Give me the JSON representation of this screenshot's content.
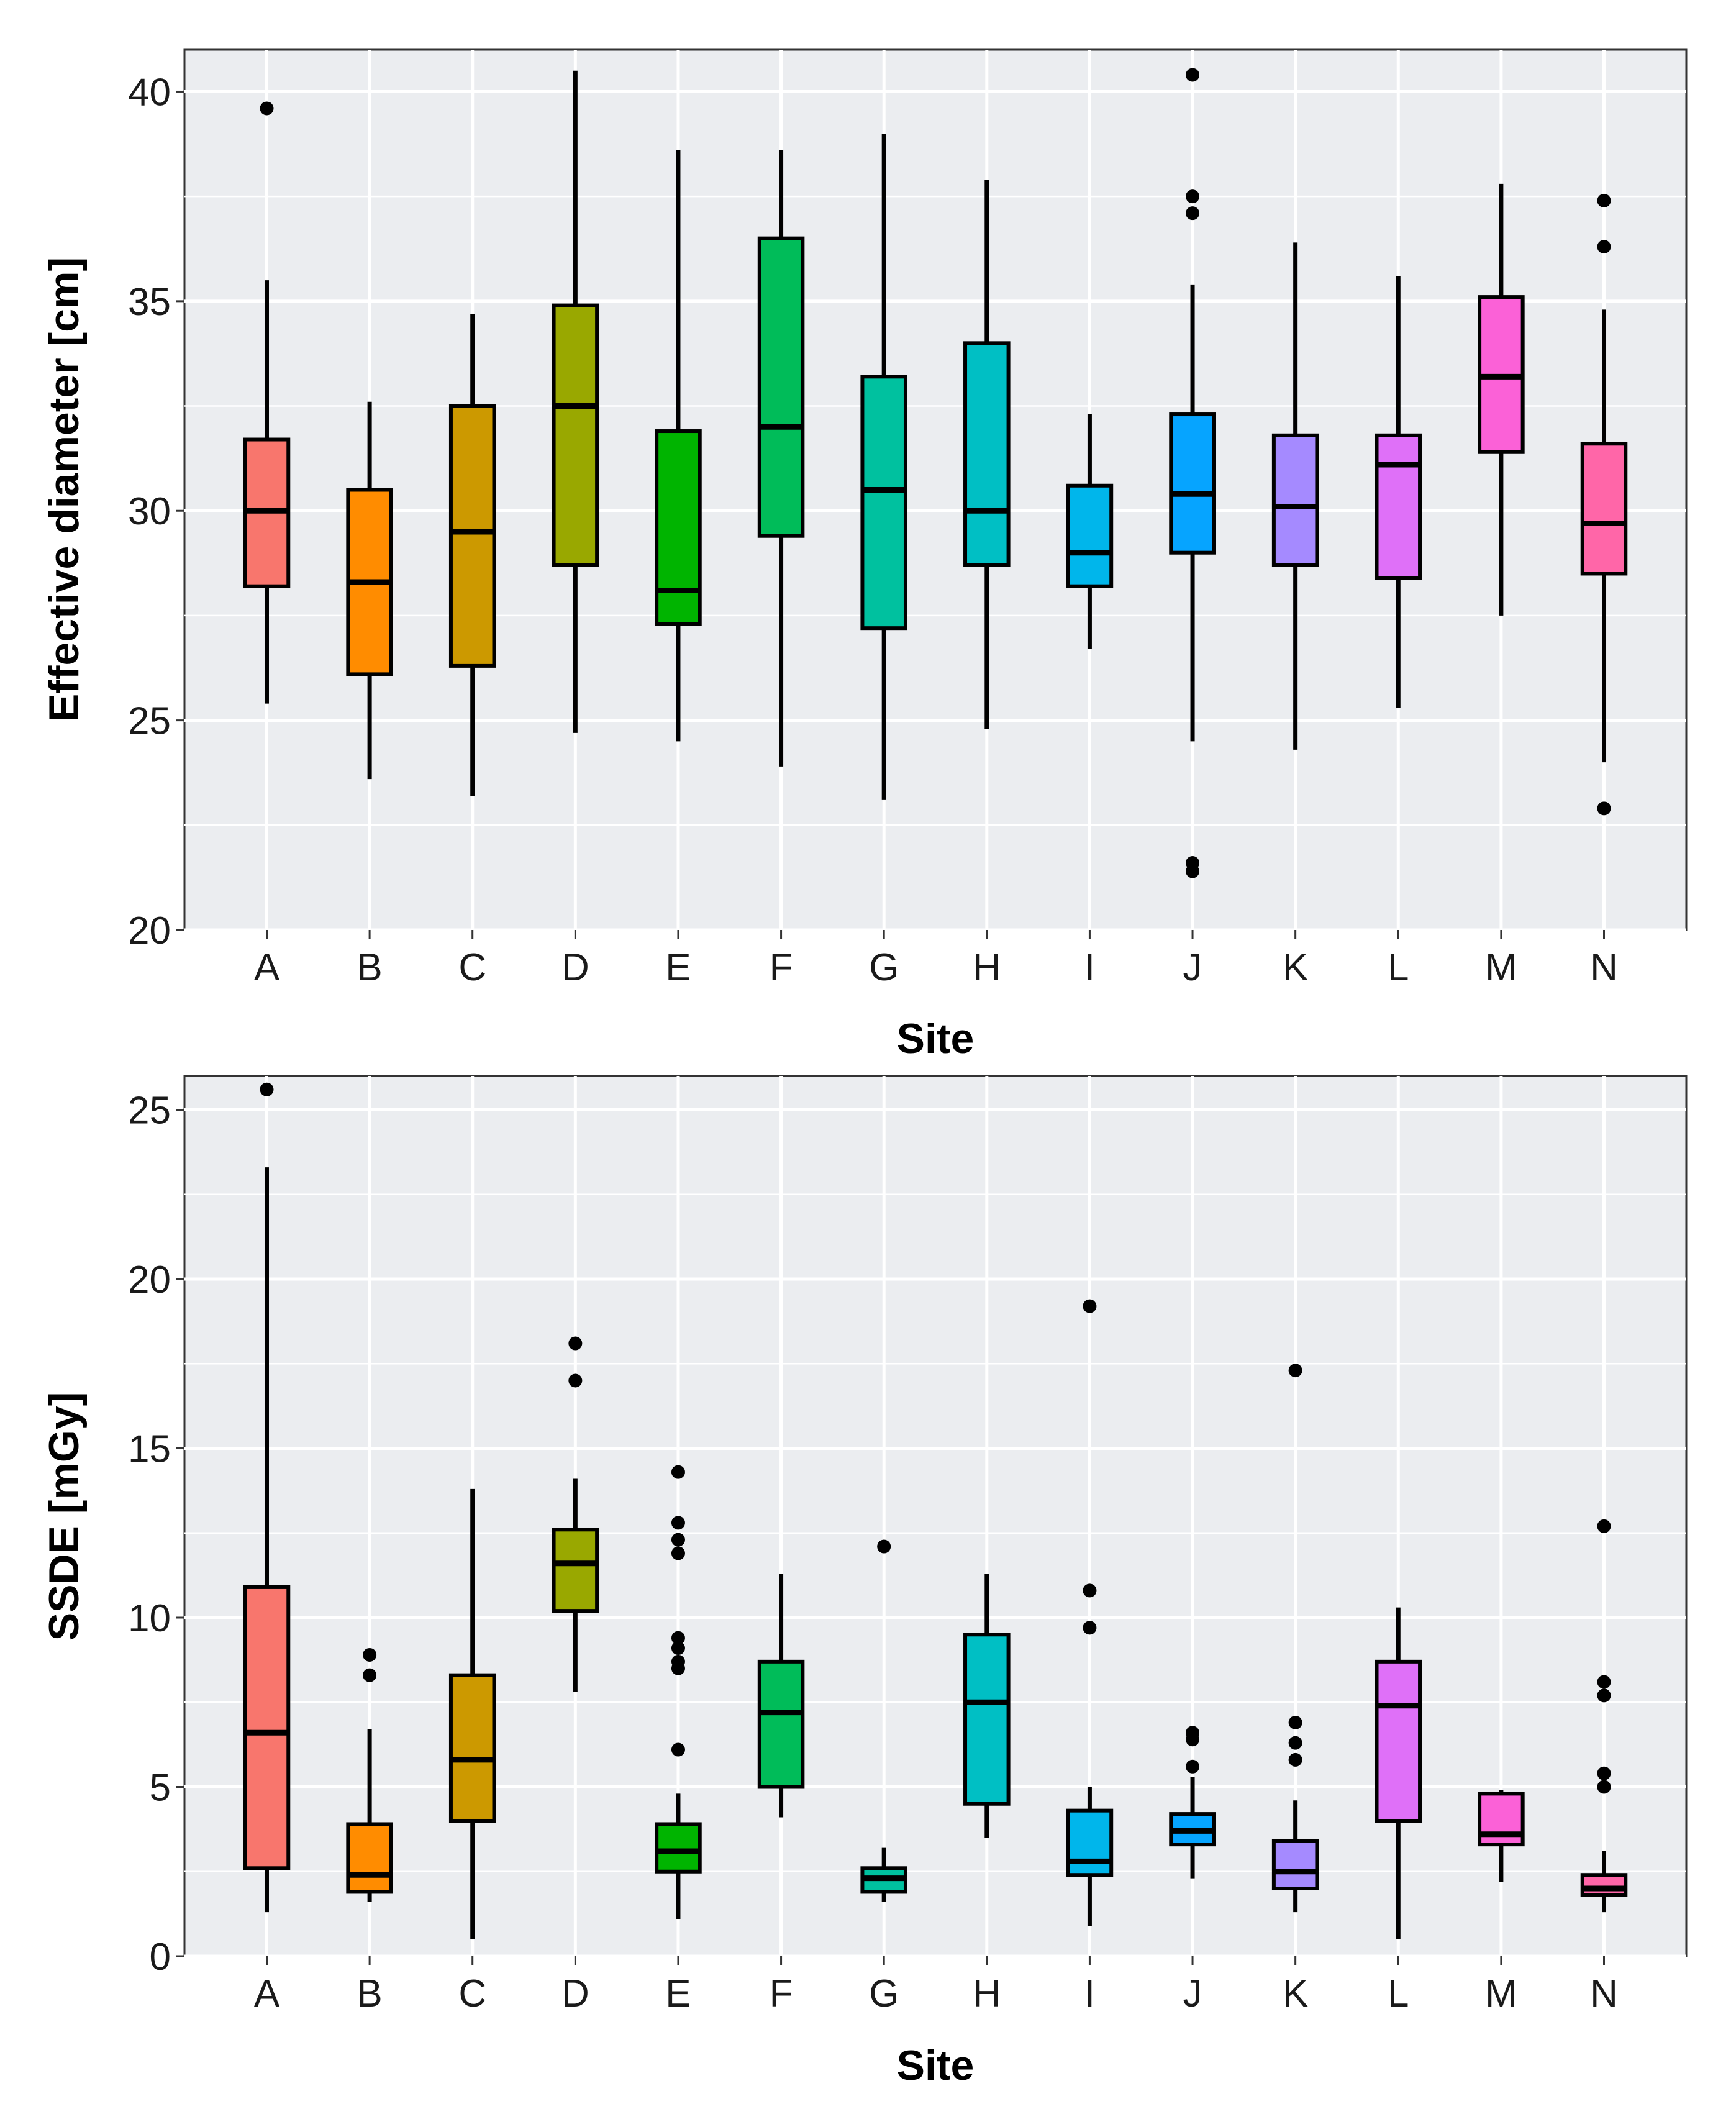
{
  "chart_data": [
    {
      "type": "boxplot",
      "title": "",
      "xlabel": "Site",
      "ylabel": "Effective diameter [cm]",
      "ylim": [
        20,
        41
      ],
      "yticks": [
        20,
        25,
        30,
        35,
        40
      ],
      "categories": [
        "A",
        "B",
        "C",
        "D",
        "E",
        "F",
        "G",
        "H",
        "I",
        "J",
        "K",
        "L",
        "M",
        "N"
      ],
      "colors": [
        "#F8766D",
        "#FF8C00",
        "#CC9900",
        "#99A800",
        "#00B400",
        "#00BC59",
        "#00C19F",
        "#00BFC4",
        "#00B6EB",
        "#06A4FF",
        "#A58AFF",
        "#DF70F8",
        "#FB61D7",
        "#FF66A8"
      ],
      "boxes": [
        {
          "site": "A",
          "low": 25.4,
          "q1": 28.2,
          "median": 30.0,
          "q3": 31.7,
          "high": 35.5,
          "outliers": [
            39.6
          ]
        },
        {
          "site": "B",
          "low": 23.6,
          "q1": 26.1,
          "median": 28.3,
          "q3": 30.5,
          "high": 32.6,
          "outliers": []
        },
        {
          "site": "C",
          "low": 23.2,
          "q1": 26.3,
          "median": 29.5,
          "q3": 32.5,
          "high": 34.7,
          "outliers": []
        },
        {
          "site": "D",
          "low": 24.7,
          "q1": 28.7,
          "median": 32.5,
          "q3": 34.9,
          "high": 40.5,
          "outliers": []
        },
        {
          "site": "E",
          "low": 24.5,
          "q1": 27.3,
          "median": 28.1,
          "q3": 31.9,
          "high": 38.6,
          "outliers": []
        },
        {
          "site": "F",
          "low": 23.9,
          "q1": 29.4,
          "median": 32.0,
          "q3": 36.5,
          "high": 38.6,
          "outliers": []
        },
        {
          "site": "G",
          "low": 23.1,
          "q1": 27.2,
          "median": 30.5,
          "q3": 33.2,
          "high": 39.0,
          "outliers": []
        },
        {
          "site": "H",
          "low": 24.8,
          "q1": 28.7,
          "median": 30.0,
          "q3": 34.0,
          "high": 37.9,
          "outliers": []
        },
        {
          "site": "I",
          "low": 26.7,
          "q1": 28.2,
          "median": 29.0,
          "q3": 30.6,
          "high": 32.3,
          "outliers": []
        },
        {
          "site": "J",
          "low": 24.5,
          "q1": 29.0,
          "median": 30.4,
          "q3": 32.3,
          "high": 35.4,
          "outliers": [
            40.4,
            37.5,
            37.1,
            21.6,
            21.4
          ]
        },
        {
          "site": "K",
          "low": 24.3,
          "q1": 28.7,
          "median": 30.1,
          "q3": 31.8,
          "high": 36.4,
          "outliers": []
        },
        {
          "site": "L",
          "low": 25.3,
          "q1": 28.4,
          "median": 31.1,
          "q3": 31.8,
          "high": 35.6,
          "outliers": []
        },
        {
          "site": "M",
          "low": 27.5,
          "q1": 31.4,
          "median": 33.2,
          "q3": 35.1,
          "high": 37.8,
          "outliers": []
        },
        {
          "site": "N",
          "low": 24.0,
          "q1": 28.5,
          "median": 29.7,
          "q3": 31.6,
          "high": 34.8,
          "outliers": [
            37.4,
            36.3,
            22.9
          ]
        }
      ]
    },
    {
      "type": "boxplot",
      "title": "",
      "xlabel": "Site",
      "ylabel": "SSDE [mGy]",
      "ylim": [
        0,
        26
      ],
      "yticks": [
        0,
        5,
        10,
        15,
        20,
        25
      ],
      "categories": [
        "A",
        "B",
        "C",
        "D",
        "E",
        "F",
        "G",
        "H",
        "I",
        "J",
        "K",
        "L",
        "M",
        "N"
      ],
      "colors": [
        "#F8766D",
        "#FF8C00",
        "#CC9900",
        "#99A800",
        "#00B400",
        "#00BC59",
        "#00C19F",
        "#00BFC4",
        "#00B6EB",
        "#06A4FF",
        "#A58AFF",
        "#DF70F8",
        "#FB61D7",
        "#FF66A8"
      ],
      "boxes": [
        {
          "site": "A",
          "low": 1.3,
          "q1": 2.6,
          "median": 6.6,
          "q3": 10.9,
          "high": 23.3,
          "outliers": [
            25.6
          ]
        },
        {
          "site": "B",
          "low": 1.6,
          "q1": 1.9,
          "median": 2.4,
          "q3": 3.9,
          "high": 6.7,
          "outliers": [
            8.9,
            8.3
          ]
        },
        {
          "site": "C",
          "low": 0.5,
          "q1": 4.0,
          "median": 5.8,
          "q3": 8.3,
          "high": 13.8,
          "outliers": []
        },
        {
          "site": "D",
          "low": 7.8,
          "q1": 10.2,
          "median": 11.6,
          "q3": 12.6,
          "high": 14.1,
          "outliers": [
            18.1,
            17.0
          ]
        },
        {
          "site": "E",
          "low": 1.1,
          "q1": 2.5,
          "median": 3.1,
          "q3": 3.9,
          "high": 4.8,
          "outliers": [
            14.3,
            12.8,
            12.3,
            11.9,
            9.4,
            9.1,
            8.7,
            8.5,
            6.1
          ]
        },
        {
          "site": "F",
          "low": 4.1,
          "q1": 5.0,
          "median": 7.2,
          "q3": 8.7,
          "high": 11.3,
          "outliers": []
        },
        {
          "site": "G",
          "low": 1.6,
          "q1": 1.9,
          "median": 2.3,
          "q3": 2.6,
          "high": 3.2,
          "outliers": [
            12.1
          ]
        },
        {
          "site": "H",
          "low": 3.5,
          "q1": 4.5,
          "median": 7.5,
          "q3": 9.5,
          "high": 11.3,
          "outliers": []
        },
        {
          "site": "I",
          "low": 0.9,
          "q1": 2.4,
          "median": 2.8,
          "q3": 4.3,
          "high": 5.0,
          "outliers": [
            19.2,
            10.8,
            9.7
          ]
        },
        {
          "site": "J",
          "low": 2.3,
          "q1": 3.3,
          "median": 3.7,
          "q3": 4.2,
          "high": 5.3,
          "outliers": [
            6.6,
            6.4,
            5.6
          ]
        },
        {
          "site": "K",
          "low": 1.3,
          "q1": 2.0,
          "median": 2.5,
          "q3": 3.4,
          "high": 4.6,
          "outliers": [
            17.3,
            6.9,
            6.3,
            5.8
          ]
        },
        {
          "site": "L",
          "low": 0.5,
          "q1": 4.0,
          "median": 7.4,
          "q3": 8.7,
          "high": 10.3,
          "outliers": []
        },
        {
          "site": "M",
          "low": 2.2,
          "q1": 3.3,
          "median": 3.6,
          "q3": 4.8,
          "high": 4.9,
          "outliers": []
        },
        {
          "site": "N",
          "low": 1.3,
          "q1": 1.8,
          "median": 2.0,
          "q3": 2.4,
          "high": 3.1,
          "outliers": [
            12.7,
            8.1,
            7.7,
            5.4,
            5.0
          ]
        }
      ]
    }
  ]
}
